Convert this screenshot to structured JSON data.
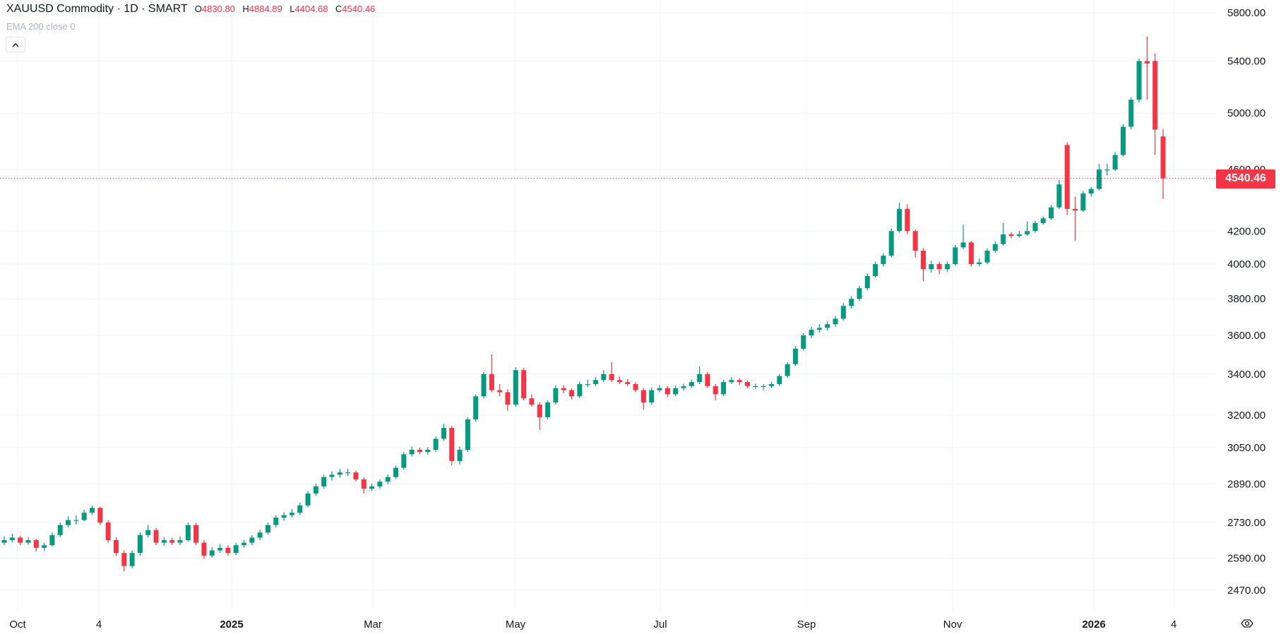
{
  "header": {
    "symbol": "XAUUSD Commodity · 1D · SMART",
    "open_label": "O",
    "open": "4830.80",
    "high_label": "H",
    "high": "4884.89",
    "low_label": "L",
    "low": "4404.68",
    "close_label": "C",
    "close": "4540.46",
    "indicator": "EMA 200 close 0",
    "collapse_icon": "chevron-up-icon"
  },
  "colors": {
    "up": "#089981",
    "down": "#f23645",
    "grid": "#f0f3fa",
    "last_price": "#f23645"
  },
  "chart_data": {
    "type": "candlestick",
    "title": "XAUUSD Commodity · 1D · SMART",
    "y_scale": "log",
    "ylim": [
      2470,
      5800
    ],
    "y_ticks": [
      "5800.00",
      "5400.00",
      "5000.00",
      "4600.00",
      "4200.00",
      "4000.00",
      "3800.00",
      "3600.00",
      "3400.00",
      "3200.00",
      "3050.00",
      "2890.00",
      "2730.00",
      "2590.00",
      "2470.00"
    ],
    "x_ticks": [
      "Oct",
      "4",
      "2025",
      "Mar",
      "May",
      "Jul",
      "Sep",
      "Nov",
      "2026",
      "4"
    ],
    "x_ticks_bold": [
      "2025",
      "2026"
    ],
    "last_price": 4540.46,
    "last_price_label": "4540.46",
    "grid": true,
    "candles_format": [
      "open",
      "high",
      "low",
      "close"
    ],
    "candles": [
      [
        2650,
        2675,
        2640,
        2660
      ],
      [
        2660,
        2685,
        2652,
        2670
      ],
      [
        2670,
        2678,
        2640,
        2650
      ],
      [
        2650,
        2672,
        2642,
        2660
      ],
      [
        2660,
        2665,
        2615,
        2630
      ],
      [
        2630,
        2650,
        2618,
        2640
      ],
      [
        2640,
        2690,
        2635,
        2680
      ],
      [
        2680,
        2730,
        2672,
        2720
      ],
      [
        2720,
        2755,
        2710,
        2740
      ],
      [
        2740,
        2760,
        2722,
        2740
      ],
      [
        2740,
        2782,
        2735,
        2770
      ],
      [
        2770,
        2800,
        2762,
        2790
      ],
      [
        2790,
        2795,
        2720,
        2730
      ],
      [
        2730,
        2740,
        2650,
        2660
      ],
      [
        2660,
        2672,
        2598,
        2610
      ],
      [
        2610,
        2620,
        2540,
        2560
      ],
      [
        2560,
        2620,
        2552,
        2610
      ],
      [
        2610,
        2690,
        2600,
        2680
      ],
      [
        2680,
        2720,
        2670,
        2700
      ],
      [
        2700,
        2708,
        2640,
        2650
      ],
      [
        2650,
        2672,
        2638,
        2660
      ],
      [
        2660,
        2670,
        2640,
        2650
      ],
      [
        2650,
        2675,
        2640,
        2660
      ],
      [
        2660,
        2730,
        2655,
        2720
      ],
      [
        2720,
        2728,
        2640,
        2650
      ],
      [
        2650,
        2660,
        2588,
        2600
      ],
      [
        2600,
        2632,
        2592,
        2620
      ],
      [
        2620,
        2645,
        2610,
        2630
      ],
      [
        2630,
        2640,
        2600,
        2610
      ],
      [
        2610,
        2650,
        2602,
        2640
      ],
      [
        2640,
        2662,
        2630,
        2650
      ],
      [
        2650,
        2680,
        2640,
        2670
      ],
      [
        2670,
        2702,
        2660,
        2690
      ],
      [
        2690,
        2730,
        2682,
        2720
      ],
      [
        2720,
        2760,
        2710,
        2750
      ],
      [
        2750,
        2772,
        2738,
        2760
      ],
      [
        2760,
        2785,
        2750,
        2770
      ],
      [
        2770,
        2812,
        2760,
        2800
      ],
      [
        2800,
        2860,
        2792,
        2850
      ],
      [
        2850,
        2892,
        2840,
        2880
      ],
      [
        2880,
        2930,
        2870,
        2920
      ],
      [
        2920,
        2945,
        2905,
        2930
      ],
      [
        2930,
        2955,
        2918,
        2940
      ],
      [
        2940,
        2956,
        2925,
        2940
      ],
      [
        2940,
        2948,
        2900,
        2910
      ],
      [
        2910,
        2918,
        2850,
        2870
      ],
      [
        2870,
        2892,
        2860,
        2880
      ],
      [
        2880,
        2910,
        2870,
        2900
      ],
      [
        2900,
        2932,
        2890,
        2920
      ],
      [
        2920,
        2970,
        2912,
        2960
      ],
      [
        2960,
        3030,
        2952,
        3020
      ],
      [
        3020,
        3055,
        3010,
        3040
      ],
      [
        3040,
        3050,
        3020,
        3030
      ],
      [
        3030,
        3052,
        3018,
        3040
      ],
      [
        3040,
        3100,
        3030,
        3090
      ],
      [
        3090,
        3160,
        3080,
        3140
      ],
      [
        3140,
        3148,
        2970,
        2990
      ],
      [
        2990,
        3055,
        2975,
        3040
      ],
      [
        3040,
        3190,
        3030,
        3180
      ],
      [
        3180,
        3300,
        3170,
        3290
      ],
      [
        3290,
        3410,
        3280,
        3400
      ],
      [
        3400,
        3500,
        3310,
        3320
      ],
      [
        3320,
        3350,
        3290,
        3310
      ],
      [
        3310,
        3325,
        3220,
        3250
      ],
      [
        3250,
        3435,
        3240,
        3420
      ],
      [
        3420,
        3430,
        3270,
        3280
      ],
      [
        3280,
        3300,
        3240,
        3250
      ],
      [
        3250,
        3262,
        3130,
        3190
      ],
      [
        3190,
        3270,
        3180,
        3260
      ],
      [
        3260,
        3345,
        3250,
        3330
      ],
      [
        3330,
        3345,
        3305,
        3320
      ],
      [
        3320,
        3330,
        3275,
        3290
      ],
      [
        3290,
        3362,
        3282,
        3350
      ],
      [
        3350,
        3372,
        3335,
        3350
      ],
      [
        3350,
        3385,
        3340,
        3370
      ],
      [
        3370,
        3420,
        3360,
        3400
      ],
      [
        3400,
        3460,
        3360,
        3370
      ],
      [
        3370,
        3388,
        3350,
        3360
      ],
      [
        3360,
        3375,
        3340,
        3350
      ],
      [
        3350,
        3360,
        3310,
        3320
      ],
      [
        3320,
        3330,
        3225,
        3260
      ],
      [
        3260,
        3332,
        3250,
        3320
      ],
      [
        3320,
        3345,
        3310,
        3330
      ],
      [
        3330,
        3340,
        3285,
        3300
      ],
      [
        3300,
        3342,
        3290,
        3330
      ],
      [
        3330,
        3352,
        3318,
        3340
      ],
      [
        3340,
        3372,
        3330,
        3360
      ],
      [
        3360,
        3440,
        3350,
        3400
      ],
      [
        3400,
        3410,
        3330,
        3340
      ],
      [
        3340,
        3350,
        3270,
        3300
      ],
      [
        3300,
        3372,
        3290,
        3360
      ],
      [
        3360,
        3385,
        3350,
        3370
      ],
      [
        3370,
        3380,
        3345,
        3360
      ],
      [
        3360,
        3368,
        3328,
        3340
      ],
      [
        3340,
        3352,
        3325,
        3340
      ],
      [
        3340,
        3350,
        3320,
        3340
      ],
      [
        3340,
        3362,
        3330,
        3350
      ],
      [
        3350,
        3400,
        3340,
        3390
      ],
      [
        3390,
        3460,
        3380,
        3450
      ],
      [
        3450,
        3545,
        3440,
        3530
      ],
      [
        3530,
        3612,
        3520,
        3600
      ],
      [
        3600,
        3645,
        3585,
        3630
      ],
      [
        3630,
        3660,
        3615,
        3640
      ],
      [
        3640,
        3675,
        3625,
        3660
      ],
      [
        3660,
        3705,
        3645,
        3690
      ],
      [
        3690,
        3775,
        3680,
        3760
      ],
      [
        3760,
        3815,
        3745,
        3800
      ],
      [
        3800,
        3875,
        3788,
        3860
      ],
      [
        3860,
        3945,
        3848,
        3930
      ],
      [
        3930,
        4015,
        3920,
        4000
      ],
      [
        4000,
        4065,
        3985,
        4050
      ],
      [
        4050,
        4215,
        4040,
        4200
      ],
      [
        4200,
        4380,
        4190,
        4340
      ],
      [
        4340,
        4370,
        4180,
        4200
      ],
      [
        4200,
        4210,
        4040,
        4080
      ],
      [
        4080,
        4095,
        3900,
        3970
      ],
      [
        3970,
        4020,
        3950,
        4000
      ],
      [
        4000,
        4015,
        3940,
        3970
      ],
      [
        3970,
        4015,
        3955,
        4000
      ],
      [
        4000,
        4115,
        3990,
        4100
      ],
      [
        4100,
        4240,
        4090,
        4130
      ],
      [
        4130,
        4140,
        3985,
        4000
      ],
      [
        4000,
        4035,
        3985,
        4010
      ],
      [
        4010,
        4095,
        4000,
        4080
      ],
      [
        4080,
        4135,
        4068,
        4120
      ],
      [
        4120,
        4250,
        4110,
        4180
      ],
      [
        4180,
        4192,
        4155,
        4170
      ],
      [
        4170,
        4200,
        4160,
        4180
      ],
      [
        4180,
        4260,
        4170,
        4200
      ],
      [
        4200,
        4265,
        4190,
        4250
      ],
      [
        4250,
        4292,
        4240,
        4280
      ],
      [
        4280,
        4365,
        4270,
        4350
      ],
      [
        4350,
        4530,
        4340,
        4500
      ],
      [
        4770,
        4790,
        4300,
        4340
      ],
      [
        4340,
        4420,
        4140,
        4330
      ],
      [
        4330,
        4455,
        4320,
        4440
      ],
      [
        4440,
        4485,
        4420,
        4470
      ],
      [
        4470,
        4640,
        4460,
        4600
      ],
      [
        4600,
        4640,
        4560,
        4600
      ],
      [
        4600,
        4720,
        4590,
        4700
      ],
      [
        4700,
        4920,
        4690,
        4900
      ],
      [
        4900,
        5120,
        4880,
        5100
      ],
      [
        5100,
        5420,
        5080,
        5400
      ],
      [
        5400,
        5600,
        5100,
        5380
      ],
      [
        5400,
        5460,
        4700,
        4880
      ],
      [
        4830.8,
        4884.89,
        4404.68,
        4540.46
      ]
    ]
  }
}
